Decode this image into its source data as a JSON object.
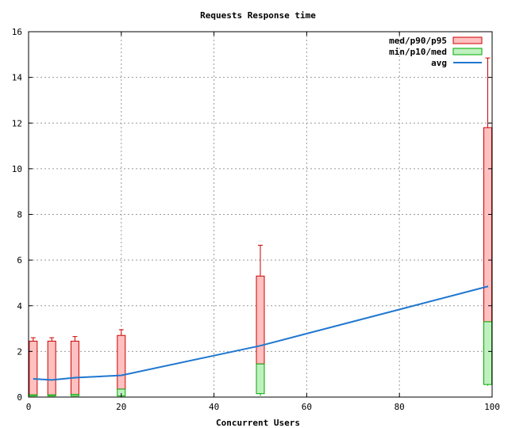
{
  "chart_data": {
    "type": "box",
    "title": "Requests Response time",
    "xlabel": "Concurrent Users",
    "ylabel": "",
    "xlim": [
      0,
      100
    ],
    "ylim": [
      0,
      16
    ],
    "xticks": [
      "0",
      "20",
      "40",
      "60",
      "80",
      "100"
    ],
    "yticks": [
      "0",
      "2",
      "4",
      "6",
      "8",
      "10",
      "12",
      "14",
      "16"
    ],
    "grid": true,
    "legend_position": "top-right",
    "legend": [
      {
        "label": "med/p90/p95",
        "color": "#ffc0c0",
        "stroke": "#cc0000"
      },
      {
        "label": "min/p10/med",
        "color": "#c0f0c0",
        "stroke": "#00aa00"
      },
      {
        "label": "avg",
        "color": "#1f77d0"
      }
    ],
    "series": [
      {
        "name": "min/p10/med",
        "x": [
          1,
          5,
          10,
          20,
          50,
          100
        ],
        "min": [
          0.05,
          0.05,
          0.05,
          0.05,
          0.05,
          0.5
        ],
        "p10": [
          0.05,
          0.05,
          0.05,
          0.05,
          0.15,
          0.55
        ],
        "med": [
          0.1,
          0.1,
          0.12,
          0.35,
          1.45,
          3.3
        ]
      },
      {
        "name": "med/p90/p95",
        "x": [
          1,
          5,
          10,
          20,
          50,
          100
        ],
        "med": [
          0.1,
          0.1,
          0.12,
          0.35,
          1.45,
          3.3
        ],
        "p90": [
          2.45,
          2.45,
          2.45,
          2.7,
          5.3,
          11.8
        ],
        "p95": [
          2.6,
          2.6,
          2.65,
          2.95,
          6.65,
          14.85
        ]
      },
      {
        "name": "avg",
        "x": [
          1,
          5,
          10,
          20,
          50,
          100
        ],
        "y": [
          0.8,
          0.75,
          0.85,
          0.95,
          2.25,
          4.85
        ]
      }
    ]
  }
}
